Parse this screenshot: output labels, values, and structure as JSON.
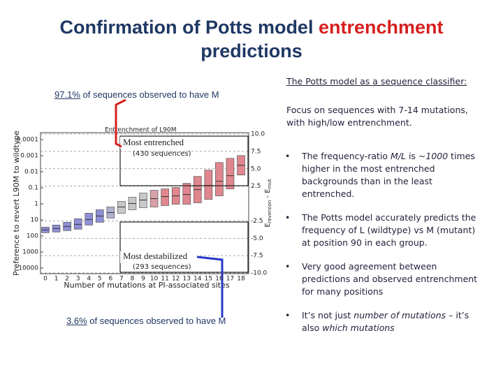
{
  "header": {
    "title_parts": [
      "Confirmation of Potts model ",
      "entrenchment",
      "predictions"
    ]
  },
  "left": {
    "top_note": [
      "97.1%",
      " of sequences observed to have M"
    ],
    "bottom_note": [
      "3.6%",
      " of sequences observed to have M"
    ]
  },
  "figure": {
    "type": "box",
    "title": "Entrenchment of L90M",
    "xlabel": "Number of mutations at PI-associated sites",
    "ylabel": "Preference to revert L90M to wildtype",
    "y2label_parts": [
      "E",
      "reversion",
      " - E",
      "mut"
    ],
    "categories": [
      "0",
      "1",
      "2",
      "3",
      "4",
      "5",
      "6",
      "7",
      "8",
      "9",
      "10",
      "11",
      "12",
      "13",
      "14",
      "15",
      "16",
      "17",
      "18"
    ],
    "yscale": "log",
    "ylim": [
      0.0001,
      10000
    ],
    "yticks": [
      0.0001,
      0.001,
      0.01,
      0.1,
      1,
      10,
      100,
      1000,
      10000
    ],
    "y2lim": [
      -10,
      10
    ],
    "y2ticks": [
      {
        "value": 10,
        "label": "10.0"
      },
      7.5,
      {
        "value": 5,
        "label": "5.0"
      },
      2.5,
      -2.5,
      {
        "value": -5,
        "label": "-5.0"
      },
      -7.5,
      {
        "value": -10,
        "label": "-10.0"
      }
    ],
    "grid": true,
    "boxes": {
      "q1": [
        -4.2,
        -4.1,
        -3.9,
        -3.7,
        -3.1,
        -2.7,
        -2.1,
        -1.4,
        -0.9,
        -0.6,
        -0.5,
        -0.3,
        -0.1,
        -0.1,
        0.1,
        0.6,
        1.1,
        2.1,
        4.1
      ],
      "median": [
        -3.8,
        -3.6,
        -3.3,
        -3.0,
        -2.3,
        -1.8,
        -1.3,
        -0.5,
        0,
        0.5,
        0.7,
        1.0,
        1.1,
        1.3,
        2.0,
        2.6,
        3.2,
        4.0,
        5.5
      ],
      "q3": [
        -3.4,
        -3.1,
        -2.7,
        -2.2,
        -1.4,
        -0.9,
        -0.5,
        0.3,
        0.9,
        1.5,
        1.9,
        2.1,
        2.3,
        2.9,
        3.9,
        4.8,
        5.9,
        6.5,
        6.9
      ],
      "colors": [
        "#8f8fd8",
        "#8f8fd8",
        "#8f8fd8",
        "#8f8fd8",
        "#8f8fd8",
        "#8f8fd8",
        "#b0b0d0",
        "#c8c8c8",
        "#c8c8c8",
        "#c8c8c8",
        "#d8a0a8",
        "#e0868e",
        "#e0868e",
        "#e0868e",
        "#e0868e",
        "#e0868e",
        "#e0868e",
        "#e0868e",
        "#e0868e"
      ]
    },
    "entrenched_label": [
      "Most entrenched",
      "(430 sequences)"
    ],
    "destabilized_label": [
      "Most destabilized",
      "(293 sequences)"
    ]
  },
  "right": {
    "heading": "The Potts model as a sequence classifier:",
    "focus": "Focus on sequences with 7-14 mutations, with high/low entrenchment.",
    "bullets": [
      [
        "The frequency-ratio ",
        "M/L",
        " is ~",
        "1000",
        " times higher in the most entrenched backgrounds than in the least entrenched."
      ],
      [
        "The Potts model accurately predicts the frequency of L (wildtype) vs M (mutant) at position 90 in each group."
      ],
      [
        "Very good agreement between predictions and observed entrenchment for many positions"
      ],
      [
        "It’s not just ",
        "number of mutations",
        " – it’s also ",
        "which mutations"
      ]
    ]
  }
}
